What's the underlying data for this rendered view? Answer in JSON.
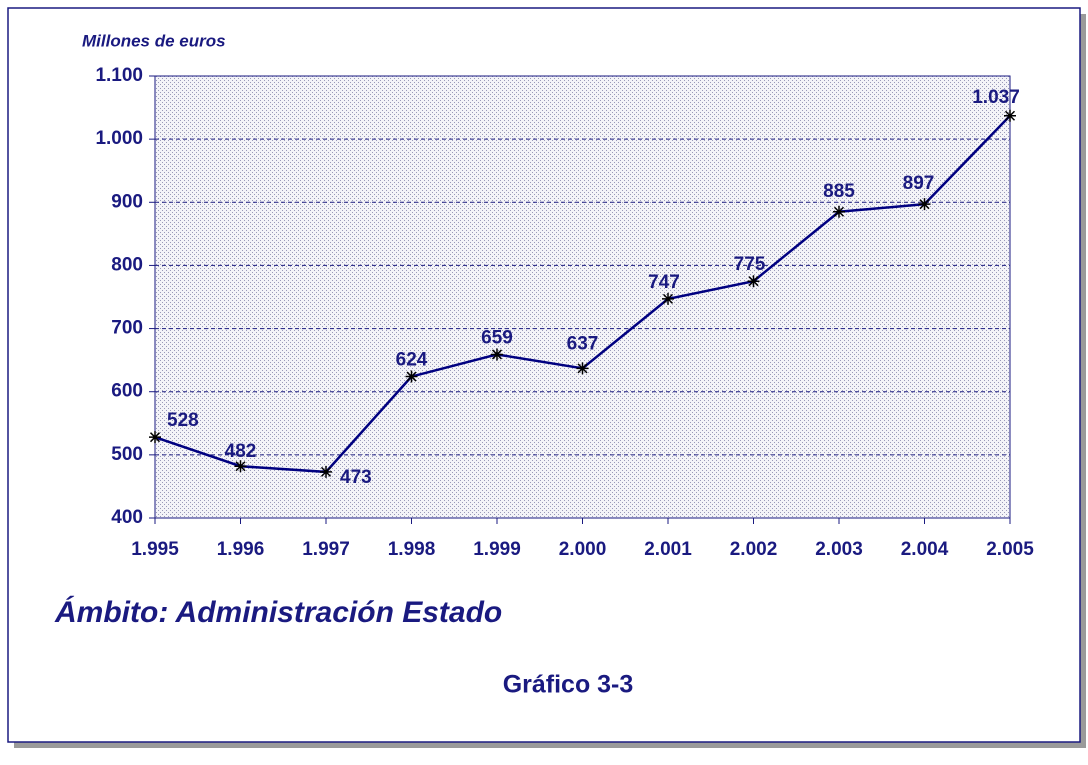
{
  "chart_data": {
    "type": "line",
    "y_axis_label": "Millones de euros",
    "annotation": "Ámbito: Administración Estado",
    "caption": "Gráfico 3-3",
    "categories": [
      "1.995",
      "1.996",
      "1.997",
      "1.998",
      "1.999",
      "2.000",
      "2.001",
      "2.002",
      "2.003",
      "2.004",
      "2.005"
    ],
    "series": [
      {
        "color": "#000080",
        "values": [
          528,
          482,
          473,
          624,
          659,
          637,
          747,
          775,
          885,
          897,
          1037
        ],
        "value_labels": [
          "528",
          "482",
          "473",
          "624",
          "659",
          "637",
          "747",
          "775",
          "885",
          "897",
          "1.037"
        ]
      }
    ],
    "ylim": [
      400,
      1100
    ],
    "yticks": [
      400,
      500,
      600,
      700,
      800,
      900,
      {
        "value": 1000,
        "label": "1.000"
      },
      {
        "value": 1100,
        "label": "1.100"
      }
    ],
    "grid": true
  }
}
